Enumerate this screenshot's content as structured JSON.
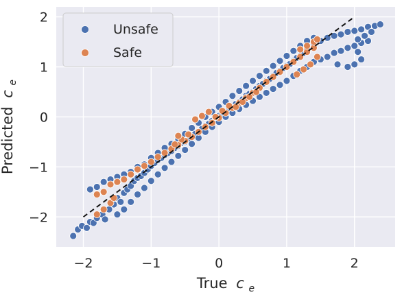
{
  "chart_data": {
    "type": "scatter",
    "xlabel": "True",
    "xlabel_symbol": "c",
    "xlabel_subscript": "e",
    "ylabel": "Predicted",
    "ylabel_symbol": "c",
    "ylabel_subscript": "e",
    "xlim": [
      -2.4,
      2.6
    ],
    "ylim": [
      -2.6,
      2.2
    ],
    "xticks": [
      -2,
      -1,
      0,
      1,
      2
    ],
    "yticks": [
      -2,
      -1,
      0,
      1,
      2
    ],
    "grid": true,
    "legend_position": "top-left",
    "reference_line": {
      "style": "dashed",
      "color": "#111111",
      "from": [
        -2,
        -2
      ],
      "to": [
        2,
        2
      ]
    },
    "series": [
      {
        "name": "Unsafe",
        "color": "#4c72b0",
        "values": [
          [
            -2.15,
            -2.38
          ],
          [
            -2.08,
            -2.25
          ],
          [
            -2.02,
            -2.18
          ],
          [
            -1.95,
            -2.22
          ],
          [
            -1.9,
            -2.1
          ],
          [
            -1.85,
            -2.12
          ],
          [
            -1.8,
            -2.02
          ],
          [
            -1.72,
            -1.95
          ],
          [
            -1.68,
            -2.05
          ],
          [
            -1.62,
            -1.85
          ],
          [
            -1.55,
            -1.75
          ],
          [
            -1.5,
            -1.62
          ],
          [
            -1.45,
            -1.7
          ],
          [
            -1.4,
            -1.52
          ],
          [
            -1.35,
            -1.45
          ],
          [
            -1.3,
            -1.38
          ],
          [
            -1.25,
            -1.28
          ],
          [
            -1.2,
            -1.22
          ],
          [
            -1.15,
            -1.18
          ],
          [
            -1.1,
            -1.12
          ],
          [
            -1.05,
            -1.05
          ],
          [
            -1.0,
            -0.98
          ],
          [
            -0.95,
            -0.92
          ],
          [
            -0.9,
            -0.86
          ],
          [
            -0.85,
            -0.82
          ],
          [
            -0.8,
            -0.76
          ],
          [
            -0.75,
            -0.72
          ],
          [
            -0.7,
            -0.68
          ],
          [
            -0.65,
            -0.62
          ],
          [
            -0.6,
            -0.58
          ],
          [
            -0.55,
            -0.52
          ],
          [
            -0.5,
            -0.5
          ],
          [
            -0.45,
            -0.44
          ],
          [
            -0.4,
            -0.38
          ],
          [
            -0.35,
            -0.34
          ],
          [
            -0.3,
            -0.3
          ],
          [
            -0.25,
            -0.24
          ],
          [
            -0.2,
            -0.18
          ],
          [
            -0.15,
            -0.14
          ],
          [
            -0.1,
            -0.08
          ],
          [
            -0.05,
            -0.04
          ],
          [
            0.0,
            0.02
          ],
          [
            0.05,
            0.06
          ],
          [
            0.1,
            0.1
          ],
          [
            0.15,
            0.15
          ],
          [
            0.2,
            0.2
          ],
          [
            0.25,
            0.26
          ],
          [
            0.3,
            0.3
          ],
          [
            0.35,
            0.35
          ],
          [
            0.4,
            0.42
          ],
          [
            0.45,
            0.46
          ],
          [
            0.5,
            0.5
          ],
          [
            0.55,
            0.56
          ],
          [
            0.6,
            0.62
          ],
          [
            0.65,
            0.66
          ],
          [
            0.7,
            0.72
          ],
          [
            0.75,
            0.76
          ],
          [
            0.8,
            0.82
          ],
          [
            0.85,
            0.88
          ],
          [
            0.9,
            0.92
          ],
          [
            0.95,
            0.98
          ],
          [
            1.0,
            1.02
          ],
          [
            1.05,
            1.06
          ],
          [
            1.1,
            1.12
          ],
          [
            1.15,
            1.18
          ],
          [
            1.2,
            1.22
          ],
          [
            1.25,
            1.28
          ],
          [
            1.3,
            1.35
          ],
          [
            1.35,
            1.4
          ],
          [
            1.4,
            1.45
          ],
          [
            1.5,
            1.52
          ],
          [
            1.6,
            1.58
          ],
          [
            1.7,
            1.62
          ],
          [
            1.8,
            1.65
          ],
          [
            1.9,
            1.7
          ],
          [
            2.0,
            1.72
          ],
          [
            2.1,
            1.75
          ],
          [
            2.2,
            1.8
          ],
          [
            2.3,
            1.82
          ],
          [
            2.38,
            1.85
          ],
          [
            -1.9,
            -1.45
          ],
          [
            -1.8,
            -1.4
          ],
          [
            -1.7,
            -1.3
          ],
          [
            -1.6,
            -1.25
          ],
          [
            -1.5,
            -1.2
          ],
          [
            -1.4,
            -1.15
          ],
          [
            -1.3,
            -1.1
          ],
          [
            -1.2,
            -1.0
          ],
          [
            -1.1,
            -0.95
          ],
          [
            -1.0,
            -0.82
          ],
          [
            -0.9,
            -0.72
          ],
          [
            -0.8,
            -0.62
          ],
          [
            -0.7,
            -0.54
          ],
          [
            -0.6,
            -0.44
          ],
          [
            -0.5,
            -0.34
          ],
          [
            -0.4,
            -0.22
          ],
          [
            -0.3,
            -0.12
          ],
          [
            -0.2,
            0.0
          ],
          [
            -0.1,
            0.1
          ],
          [
            0.0,
            0.2
          ],
          [
            0.1,
            0.3
          ],
          [
            0.2,
            0.42
          ],
          [
            0.3,
            0.52
          ],
          [
            0.4,
            0.62
          ],
          [
            0.5,
            0.72
          ],
          [
            0.6,
            0.82
          ],
          [
            0.7,
            0.92
          ],
          [
            0.8,
            1.02
          ],
          [
            0.9,
            1.12
          ],
          [
            1.0,
            1.22
          ],
          [
            1.1,
            1.32
          ],
          [
            1.2,
            1.42
          ],
          [
            1.3,
            1.52
          ],
          [
            1.4,
            1.58
          ],
          [
            -1.5,
            -1.95
          ],
          [
            -1.4,
            -1.85
          ],
          [
            -1.3,
            -1.7
          ],
          [
            -1.2,
            -1.55
          ],
          [
            -1.1,
            -1.42
          ],
          [
            -1.0,
            -1.28
          ],
          [
            -0.9,
            -1.15
          ],
          [
            -0.8,
            -1.02
          ],
          [
            -0.7,
            -0.9
          ],
          [
            -0.6,
            -0.78
          ],
          [
            -0.5,
            -0.66
          ],
          [
            -0.4,
            -0.54
          ],
          [
            -0.3,
            -0.42
          ],
          [
            -0.2,
            -0.3
          ],
          [
            -0.1,
            -0.2
          ],
          [
            0.0,
            -0.1
          ],
          [
            0.1,
            0.0
          ],
          [
            0.2,
            0.08
          ],
          [
            0.3,
            0.16
          ],
          [
            0.4,
            0.24
          ],
          [
            0.5,
            0.32
          ],
          [
            0.6,
            0.4
          ],
          [
            0.7,
            0.48
          ],
          [
            0.8,
            0.56
          ],
          [
            0.9,
            0.64
          ],
          [
            1.0,
            0.72
          ],
          [
            1.1,
            0.82
          ],
          [
            1.2,
            0.92
          ],
          [
            1.3,
            1.0
          ],
          [
            1.4,
            1.1
          ],
          [
            1.5,
            1.15
          ],
          [
            1.6,
            1.2
          ],
          [
            1.7,
            1.28
          ],
          [
            1.8,
            1.32
          ],
          [
            1.9,
            1.38
          ],
          [
            2.0,
            1.42
          ],
          [
            2.1,
            1.48
          ],
          [
            2.2,
            1.52
          ],
          [
            2.1,
            1.15
          ],
          [
            2.0,
            1.05
          ],
          [
            1.9,
            1.0
          ],
          [
            1.75,
            1.05
          ],
          [
            2.05,
            1.3
          ],
          [
            2.15,
            1.62
          ],
          [
            2.25,
            1.7
          ],
          [
            2.05,
            1.55
          ]
        ]
      },
      {
        "name": "Safe",
        "color": "#dd8452",
        "values": [
          [
            -1.8,
            -1.55
          ],
          [
            -1.7,
            -1.5
          ],
          [
            -1.6,
            -1.35
          ],
          [
            -1.5,
            -1.3
          ],
          [
            -1.4,
            -1.25
          ],
          [
            -1.3,
            -1.15
          ],
          [
            -1.2,
            -1.05
          ],
          [
            -1.1,
            -0.98
          ],
          [
            -1.0,
            -0.9
          ],
          [
            -0.9,
            -0.8
          ],
          [
            -0.8,
            -0.72
          ],
          [
            -0.7,
            -0.64
          ],
          [
            -0.6,
            -0.56
          ],
          [
            -0.5,
            -0.48
          ],
          [
            -0.4,
            -0.4
          ],
          [
            -0.3,
            -0.3
          ],
          [
            -0.2,
            -0.2
          ],
          [
            -0.1,
            -0.12
          ],
          [
            0.0,
            -0.02
          ],
          [
            0.1,
            0.08
          ],
          [
            0.2,
            0.18
          ],
          [
            0.3,
            0.28
          ],
          [
            0.4,
            0.38
          ],
          [
            0.5,
            0.48
          ],
          [
            0.6,
            0.58
          ],
          [
            0.7,
            0.7
          ],
          [
            0.8,
            0.8
          ],
          [
            0.9,
            0.9
          ],
          [
            1.0,
            1.0
          ],
          [
            1.1,
            1.1
          ],
          [
            1.2,
            1.2
          ],
          [
            1.3,
            1.3
          ],
          [
            1.4,
            1.38
          ],
          [
            -1.8,
            -1.95
          ],
          [
            -1.7,
            -1.85
          ],
          [
            -1.6,
            -1.72
          ],
          [
            -1.55,
            -1.62
          ],
          [
            -0.35,
            -0.05
          ],
          [
            -0.25,
            0.02
          ],
          [
            -0.15,
            0.1
          ],
          [
            -0.05,
            0.0
          ],
          [
            0.05,
            0.12
          ],
          [
            0.15,
            0.22
          ],
          [
            0.25,
            0.2
          ],
          [
            0.35,
            0.3
          ],
          [
            0.45,
            0.4
          ],
          [
            0.55,
            0.5
          ],
          [
            -0.45,
            -0.35
          ],
          [
            -0.55,
            -0.45
          ],
          [
            -0.65,
            -0.55
          ],
          [
            -0.6,
            -0.38
          ],
          [
            1.15,
            0.85
          ],
          [
            1.25,
            0.95
          ],
          [
            1.35,
            1.05
          ],
          [
            1.45,
            1.2
          ],
          [
            1.2,
            1.35
          ],
          [
            1.3,
            1.42
          ],
          [
            1.4,
            1.5
          ],
          [
            1.45,
            1.55
          ]
        ]
      }
    ]
  }
}
